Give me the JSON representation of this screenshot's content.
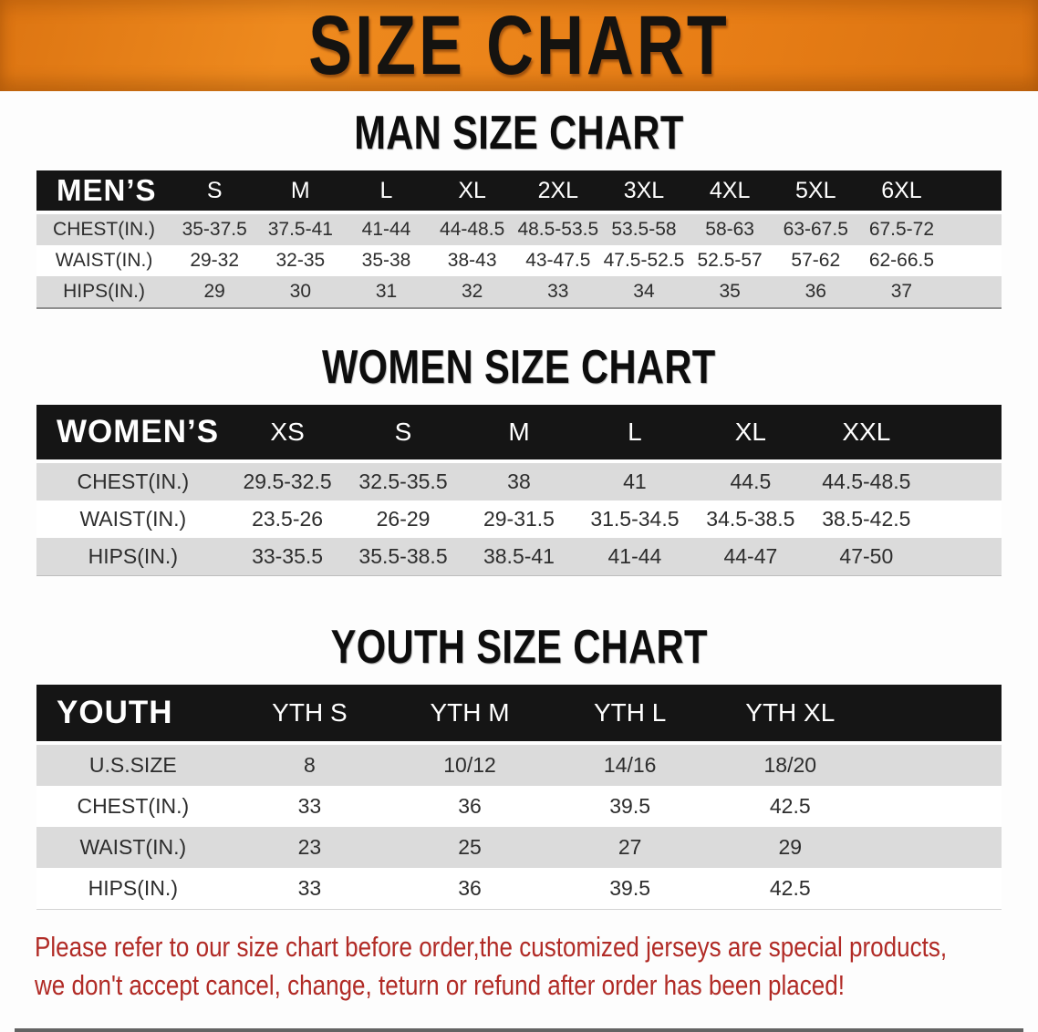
{
  "banner": {
    "title": "SIZE CHART",
    "bg_color": "#e77d15",
    "text_color": "#151310"
  },
  "colors": {
    "header_bar": "#151515",
    "row_stripe": "#dbdbdb",
    "disclaimer_red": "#b12b26"
  },
  "sections": [
    {
      "id": "men",
      "heading": "MAN SIZE CHART",
      "corner_label": "MEN’S",
      "columns": [
        "S",
        "M",
        "L",
        "XL",
        "2XL",
        "3XL",
        "4XL",
        "5XL",
        "6XL"
      ],
      "rows": [
        {
          "label": "CHEST(IN.)",
          "values": [
            "35-37.5",
            "37.5-41",
            "41-44",
            "44-48.5",
            "48.5-53.5",
            "53.5-58",
            "58-63",
            "63-67.5",
            "67.5-72"
          ]
        },
        {
          "label": "WAIST(IN.)",
          "values": [
            "29-32",
            "32-35",
            "35-38",
            "38-43",
            "43-47.5",
            "47.5-52.5",
            "52.5-57",
            "57-62",
            "62-66.5"
          ]
        },
        {
          "label": "HIPS(IN.)",
          "values": [
            "29",
            "30",
            "31",
            "32",
            "33",
            "34",
            "35",
            "36",
            "37"
          ]
        }
      ]
    },
    {
      "id": "women",
      "heading": "WOMEN SIZE CHART",
      "corner_label": "WOMEN’S",
      "columns": [
        "XS",
        "S",
        "M",
        "L",
        "XL",
        "XXL"
      ],
      "rows": [
        {
          "label": "CHEST(IN.)",
          "values": [
            "29.5-32.5",
            "32.5-35.5",
            "38",
            "41",
            "44.5",
            "44.5-48.5"
          ]
        },
        {
          "label": "WAIST(IN.)",
          "values": [
            "23.5-26",
            "26-29",
            "29-31.5",
            "31.5-34.5",
            "34.5-38.5",
            "38.5-42.5"
          ]
        },
        {
          "label": "HIPS(IN.)",
          "values": [
            "33-35.5",
            "35.5-38.5",
            "38.5-41",
            "41-44",
            "44-47",
            "47-50"
          ]
        }
      ]
    },
    {
      "id": "youth",
      "heading": "YOUTH SIZE CHART",
      "corner_label": "YOUTH",
      "columns": [
        "YTH S",
        "YTH M",
        "YTH L",
        "YTH XL"
      ],
      "rows": [
        {
          "label": "U.S.SIZE",
          "values": [
            "8",
            "10/12",
            "14/16",
            "18/20"
          ]
        },
        {
          "label": "CHEST(IN.)",
          "values": [
            "33",
            "36",
            "39.5",
            "42.5"
          ]
        },
        {
          "label": "WAIST(IN.)",
          "values": [
            "23",
            "25",
            "27",
            "29"
          ]
        },
        {
          "label": "HIPS(IN.)",
          "values": [
            "33",
            "36",
            "39.5",
            "42.5"
          ]
        }
      ]
    }
  ],
  "disclaimer": {
    "line1": "Please refer to our size chart before order,the customized jerseys are special products,",
    "line2": "we don't accept cancel, change, teturn or refund after order has been placed!"
  }
}
